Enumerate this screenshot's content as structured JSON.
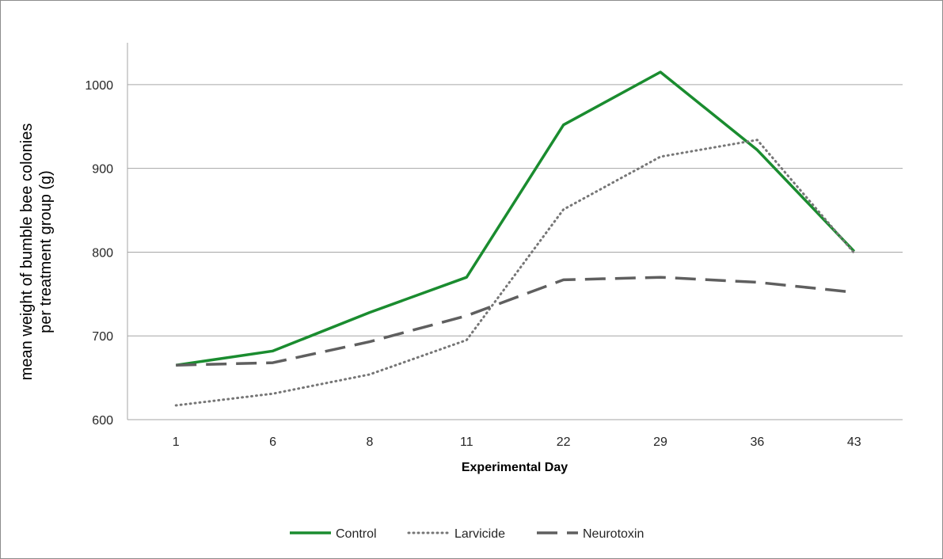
{
  "chart_data": {
    "type": "line",
    "title": "",
    "xlabel": "Experimental Day",
    "ylabel_lines": [
      "mean weight of bumble bee colonies",
      "per treatment group (g)"
    ],
    "categories": [
      "1",
      "6",
      "8",
      "11",
      "22",
      "29",
      "36",
      "43"
    ],
    "ylim": [
      600,
      1050
    ],
    "yticks": [
      600,
      700,
      800,
      900,
      1000
    ],
    "grid": true,
    "legend_position": "bottom",
    "series": [
      {
        "name": "Control",
        "color": "#1a8c2f",
        "style": "solid",
        "values": [
          665,
          682,
          728,
          770,
          952,
          1015,
          922,
          801
        ]
      },
      {
        "name": "Larvicide",
        "color": "#767676",
        "style": "dotted",
        "values": [
          617,
          631,
          654,
          695,
          851,
          914,
          934,
          799
        ]
      },
      {
        "name": "Neurotoxin",
        "color": "#5f5f5f",
        "style": "dashed",
        "values": [
          665,
          668,
          693,
          724,
          767,
          770,
          764,
          752
        ]
      }
    ]
  }
}
